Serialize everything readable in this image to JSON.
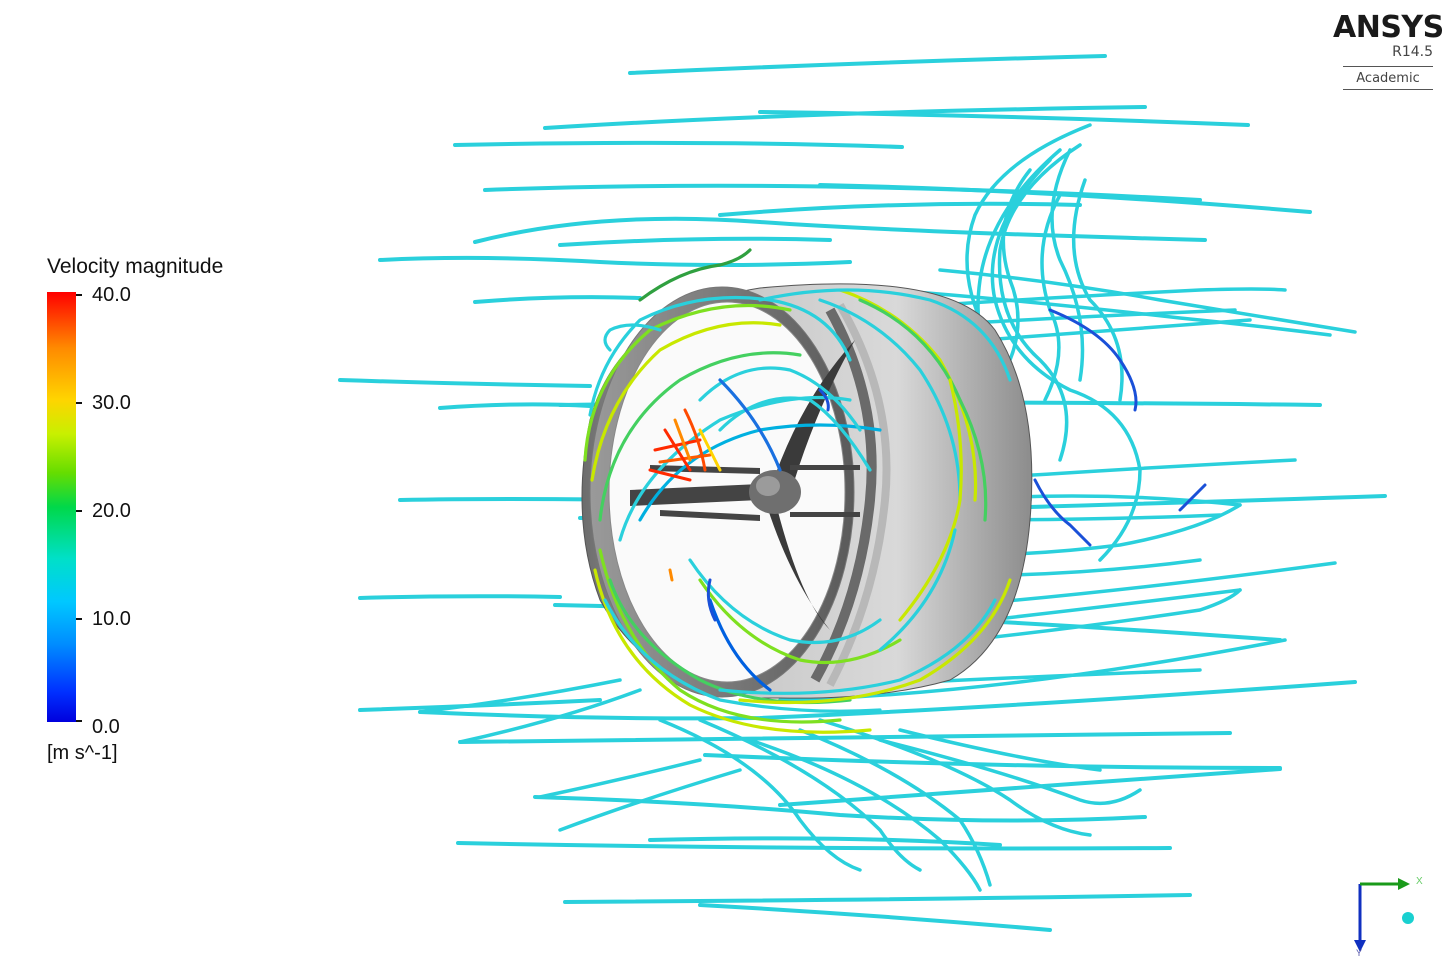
{
  "legend": {
    "title": "Velocity magnitude",
    "ticks": [
      "40.0",
      "30.0",
      "20.0",
      "10.0",
      "0.0"
    ],
    "units": "[m s^-1]",
    "range": [
      0,
      40
    ],
    "colors": [
      "#ff0000",
      "#ffd400",
      "#00d84a",
      "#00c8ff",
      "#0000dd"
    ]
  },
  "logo": {
    "brand": "ANSYS",
    "version": "R14.5",
    "edition": "Academic"
  },
  "axis_triad": {
    "labels": [
      "X",
      "Y",
      "Z"
    ],
    "colors": [
      "#1a9a1a",
      "#1030c0",
      "#19d0d0"
    ]
  },
  "scene": {
    "object": "ducted-fan",
    "streamline_color_main": "#2ad0dc"
  }
}
